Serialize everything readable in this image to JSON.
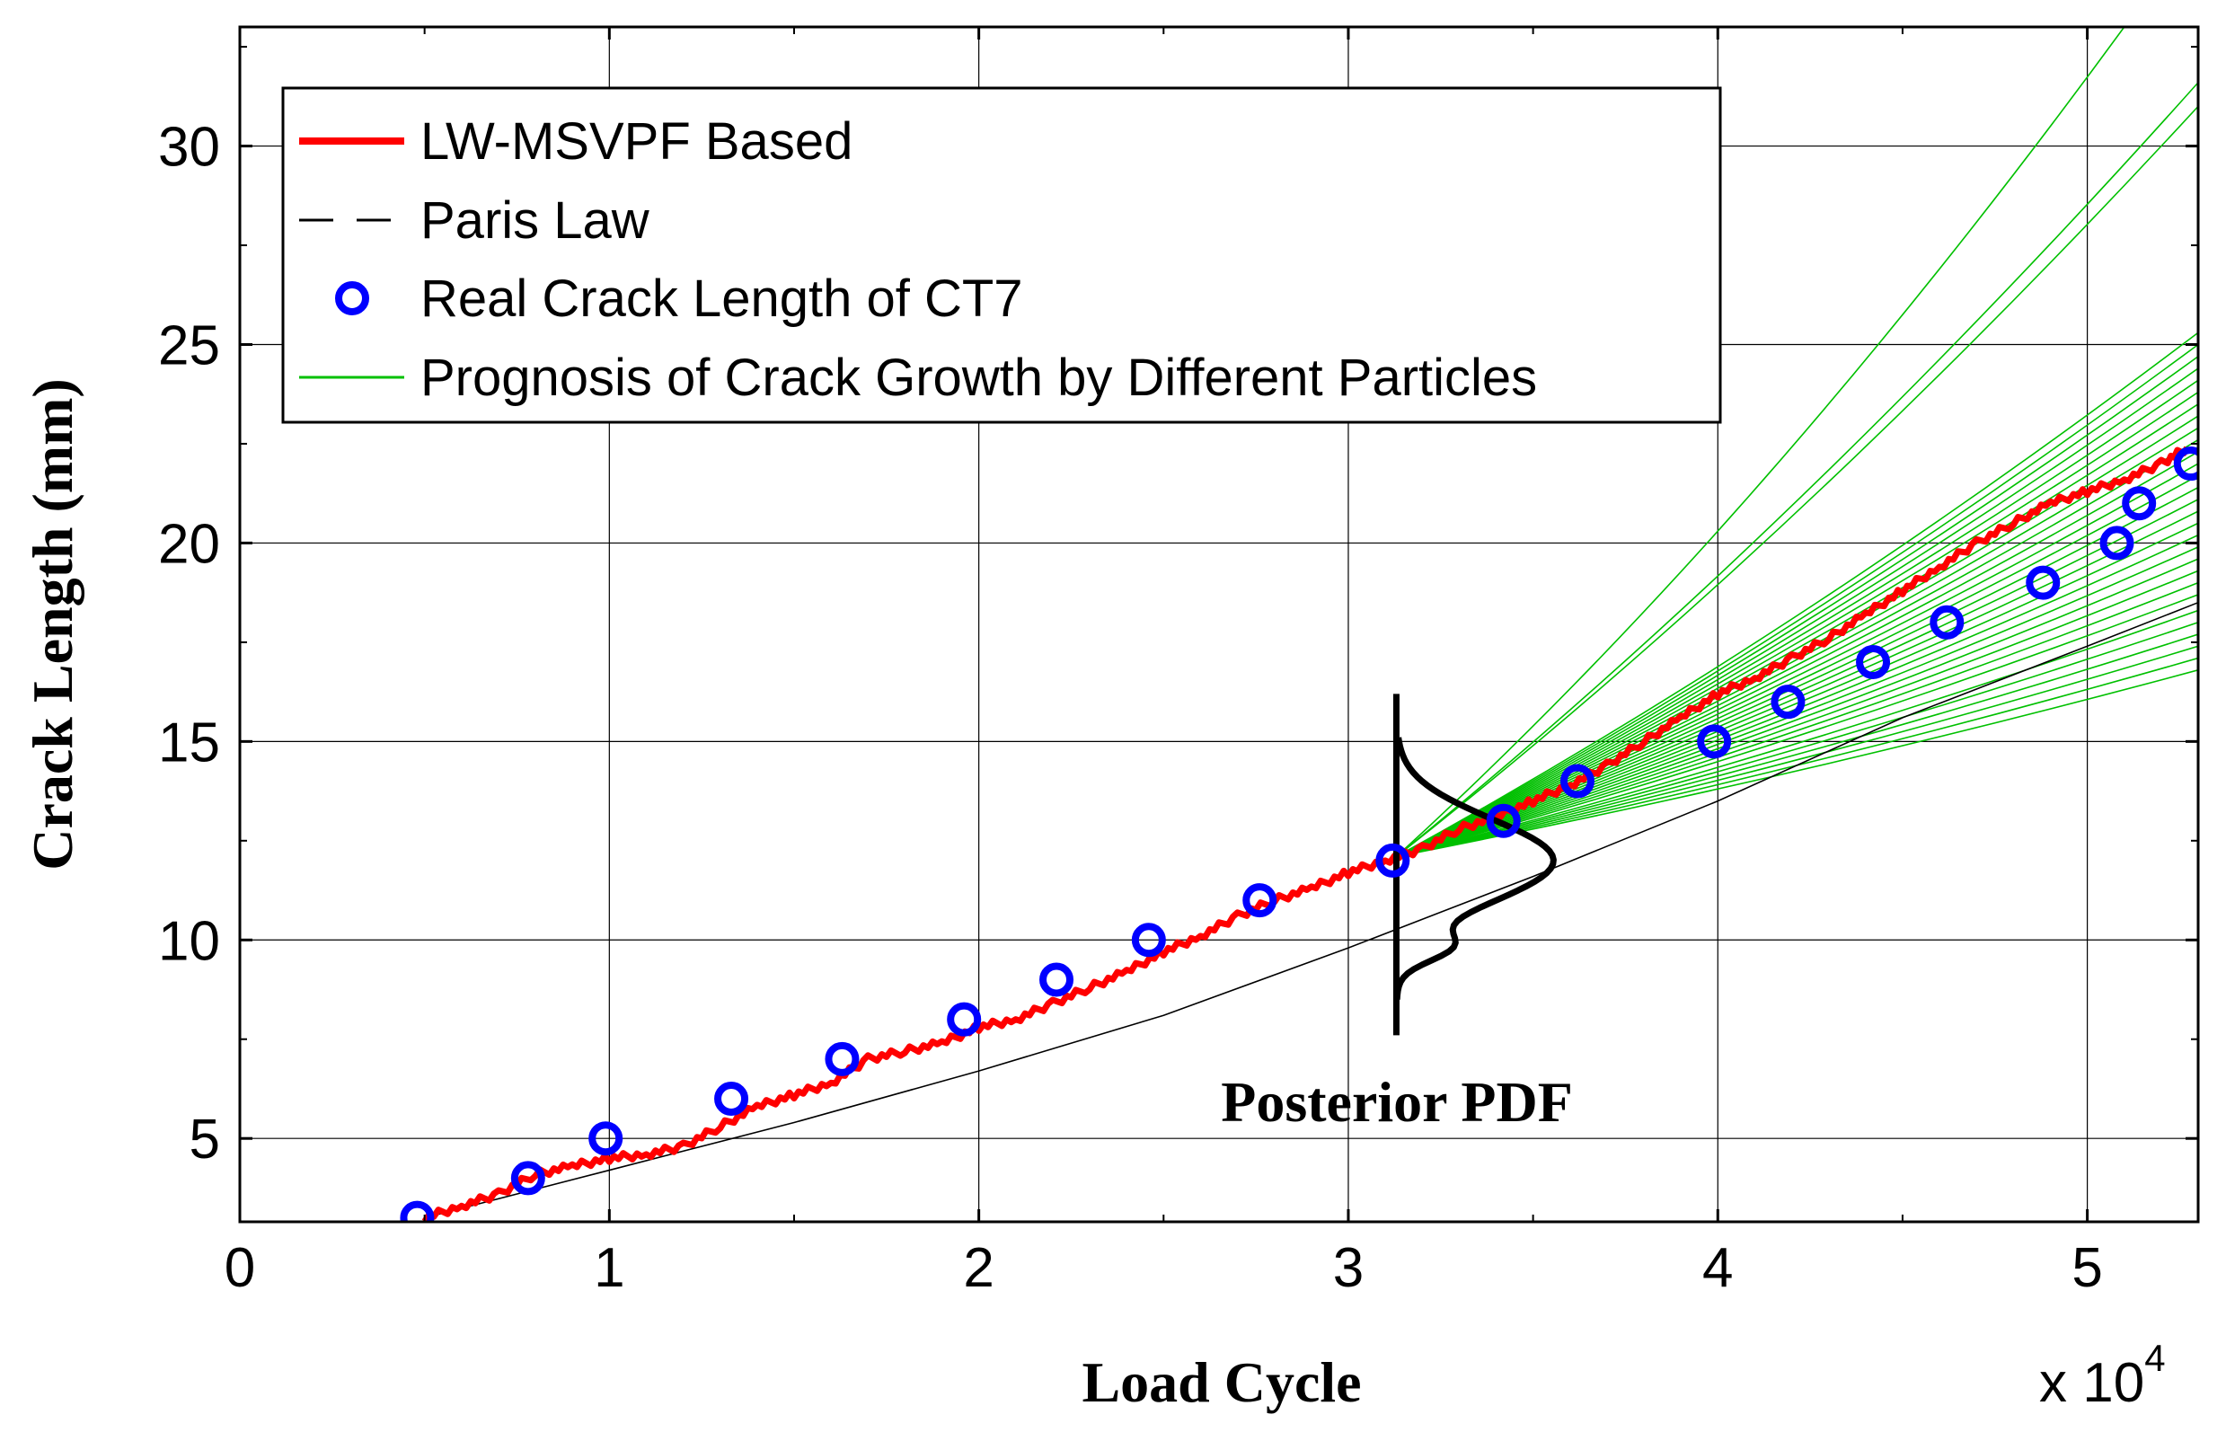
{
  "chart_data": {
    "type": "line",
    "title": "",
    "xlabel": "Load Cycle",
    "ylabel": "Crack Length (mm)",
    "x_multiplier_label": "x 10",
    "x_multiplier_exp": "4",
    "xlim": [
      0,
      5.3
    ],
    "ylim": [
      2.9,
      33
    ],
    "x_scale": 10000,
    "xticks": [
      0,
      1,
      2,
      3,
      4,
      5
    ],
    "xtick_labels": [
      "0",
      "1",
      "2",
      "3",
      "4",
      "5"
    ],
    "yticks": [
      5,
      10,
      15,
      20,
      25,
      30
    ],
    "ytick_labels": [
      "5",
      "10",
      "15",
      "20",
      "25",
      "30"
    ],
    "grid": true,
    "legend": {
      "position": "top-left",
      "entries": [
        {
          "label": "LW-MSVPF Based",
          "style": "thick-solid",
          "color": "#ff0000"
        },
        {
          "label": "Paris Law",
          "style": "dashed",
          "color": "#000000"
        },
        {
          "label": "Real Crack Length of CT7",
          "style": "circle-marker",
          "color": "#0000ff"
        },
        {
          "label": "Prognosis of Crack Growth by Different Particles",
          "style": "thin-solid",
          "color": "#00c000"
        }
      ]
    },
    "series": [
      {
        "name": "Real Crack Length of CT7",
        "type": "scatter",
        "color": "#0000ff",
        "x": [
          0.48,
          0.78,
          0.99,
          1.33,
          1.63,
          1.96,
          2.21,
          2.46,
          2.76,
          3.12,
          3.42,
          3.62,
          3.99,
          4.19,
          4.42,
          4.62,
          4.88,
          5.08,
          5.14,
          5.28
        ],
        "y": [
          3,
          4,
          5,
          6,
          7,
          8,
          9,
          10,
          11,
          12,
          13,
          14,
          15,
          16,
          17,
          18,
          19,
          20,
          21,
          22
        ]
      },
      {
        "name": "LW-MSVPF Based",
        "type": "line",
        "color": "#ff0000",
        "x": [
          0.5,
          0.6,
          0.7,
          0.8,
          0.9,
          1.0,
          1.1,
          1.2,
          1.3,
          1.4,
          1.5,
          1.6,
          1.7,
          1.8,
          1.9,
          2.0,
          2.1,
          2.2,
          2.3,
          2.4,
          2.5,
          2.6,
          2.7,
          2.8,
          2.9,
          3.0,
          3.1,
          3.2,
          3.3,
          3.4,
          3.5,
          3.6,
          3.7,
          3.8,
          3.9,
          4.0,
          4.1,
          4.2,
          4.3,
          4.4,
          4.5,
          4.6,
          4.7,
          4.8,
          4.9,
          5.0,
          5.1,
          5.2,
          5.27
        ],
        "y": [
          3.0,
          3.3,
          3.6,
          4.1,
          4.3,
          4.5,
          4.6,
          4.8,
          5.3,
          5.8,
          6.1,
          6.4,
          7.0,
          7.2,
          7.4,
          7.8,
          8.0,
          8.4,
          8.8,
          9.2,
          9.7,
          10.1,
          10.6,
          11.0,
          11.3,
          11.7,
          12.0,
          12.3,
          12.8,
          13.1,
          13.5,
          13.9,
          14.4,
          15.0,
          15.6,
          16.2,
          16.6,
          17.1,
          17.6,
          18.2,
          18.8,
          19.4,
          20.0,
          20.5,
          21.0,
          21.3,
          21.6,
          22.0,
          22.4
        ]
      },
      {
        "name": "Paris Law",
        "type": "line",
        "color": "#000000",
        "x": [
          0.5,
          1.0,
          1.5,
          2.0,
          2.5,
          3.0,
          3.5,
          4.0,
          4.5,
          5.0,
          5.3
        ],
        "y": [
          3.0,
          4.2,
          5.4,
          6.7,
          8.1,
          9.8,
          11.6,
          13.5,
          15.6,
          17.4,
          18.5
        ]
      },
      {
        "name": "Prognosis of Crack Growth by Different Particles",
        "type": "line-bundle",
        "color": "#00c000",
        "start_x": 3.13,
        "start_y": 12.1,
        "end_x": 5.3,
        "end_ys": [
          16.8,
          17.1,
          17.4,
          17.7,
          18.0,
          18.3,
          18.7,
          19.0,
          19.3,
          19.6,
          19.9,
          20.2,
          20.5,
          20.8,
          21.1,
          21.4,
          21.7,
          22.0,
          22.3,
          22.6,
          22.9,
          23.2,
          23.5,
          23.8,
          24.1,
          24.4,
          24.7,
          25.0,
          25.3,
          31.0,
          31.6
        ],
        "steep_end": {
          "x": 5.1,
          "y": 33
        }
      }
    ],
    "annotations": [
      {
        "text": "Posterior PDF",
        "x": 3.15,
        "y": 6.0
      }
    ],
    "pdf_curve": {
      "x_center": 3.13,
      "peak_y": 12.0,
      "y_range": [
        7.6,
        16.2
      ]
    }
  }
}
